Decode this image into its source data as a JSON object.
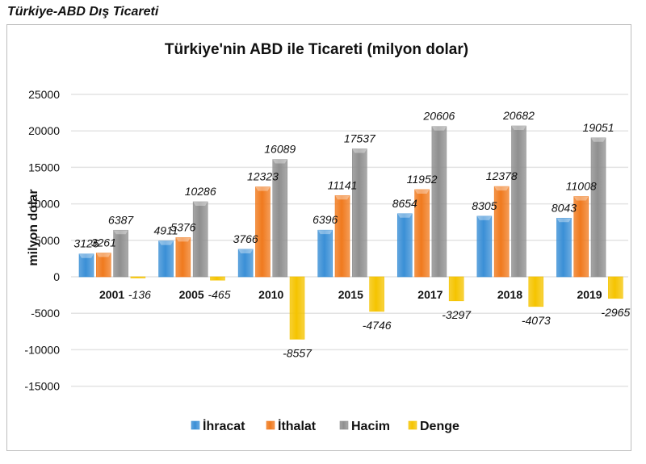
{
  "page": {
    "heading": "Türkiye-ABD Dış Ticareti"
  },
  "chart_data": {
    "type": "bar",
    "title": "Türkiye'nin ABD ile Ticareti (milyon dolar)",
    "xlabel": "",
    "ylabel": "milyon dolar",
    "ylim": [
      -15000,
      25000
    ],
    "yticks": [
      25000,
      20000,
      15000,
      10000,
      5000,
      0,
      -5000,
      -10000,
      -15000
    ],
    "grid": true,
    "legend_position": "bottom",
    "categories": [
      "2001",
      "2005",
      "2010",
      "2015",
      "2017",
      "2018",
      "2019"
    ],
    "series": [
      {
        "name": "İhracat",
        "color": "#3a8fd6",
        "values": [
          3126,
          4911,
          3766,
          6396,
          8654,
          8305,
          8043
        ]
      },
      {
        "name": "İthalat",
        "color": "#f07a1e",
        "values": [
          3261,
          5376,
          12323,
          11141,
          11952,
          12378,
          11008
        ]
      },
      {
        "name": "Hacim",
        "color": "#8f8f8f",
        "values": [
          6387,
          10286,
          16089,
          17537,
          20606,
          20682,
          19051
        ]
      },
      {
        "name": "Denge",
        "color": "#f5c400",
        "values": [
          -136,
          -465,
          -8557,
          -4746,
          -3297,
          -4073,
          -2965
        ]
      }
    ]
  }
}
